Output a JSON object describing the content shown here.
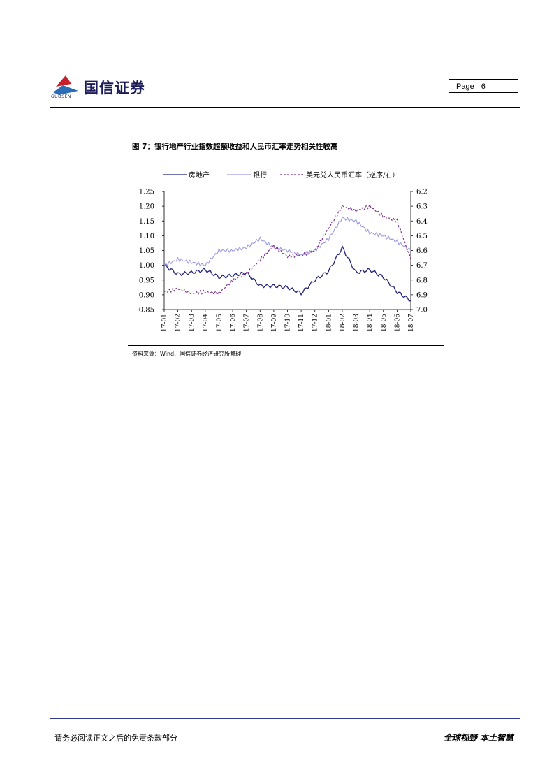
{
  "header": {
    "logo_text": "国信证券",
    "logo_subtext": "GUOSEN",
    "page_label": "Page",
    "page_number": "6"
  },
  "figure": {
    "title": "图 7：银行地产行业指数超额收益和人民币汇率走势相关性较高",
    "source": "资料来源：Wind、国信证券经济研究所整理"
  },
  "chart_data": {
    "type": "line",
    "title": "",
    "legend_position": "top",
    "grid": false,
    "x": [
      "17-01",
      "17-02",
      "17-03",
      "17-04",
      "17-05",
      "17-06",
      "17-07",
      "17-08",
      "17-09",
      "17-10",
      "17-11",
      "17-12",
      "18-01",
      "18-02",
      "18-03",
      "18-04",
      "18-05",
      "18-06",
      "18-07"
    ],
    "x_tick_labels": [
      "17-01",
      "17-02",
      "17-03",
      "17-04",
      "17-05",
      "17-06",
      "17-07",
      "17-08",
      "17-09",
      "17-10",
      "17-11",
      "17-12",
      "18-01",
      "18-02",
      "18-03",
      "18-04",
      "18-05",
      "18-06",
      "18-07"
    ],
    "y_left": {
      "ylim": [
        0.85,
        1.25
      ],
      "ticks": [
        "1.25",
        "1.20",
        "1.15",
        "1.10",
        "1.05",
        "1.00",
        "0.95",
        "0.90",
        "0.85"
      ]
    },
    "y_right": {
      "ylim": [
        6.2,
        7.0
      ],
      "reversed": true,
      "ticks": [
        "6.2",
        "6.3",
        "6.4",
        "6.5",
        "6.6",
        "6.7",
        "6.8",
        "6.9",
        "7.0"
      ]
    },
    "series": [
      {
        "name": "房地产",
        "axis": "left",
        "color": "#1f1f7a",
        "style": "solid",
        "values": [
          1.0,
          0.97,
          0.975,
          0.985,
          0.96,
          0.965,
          0.975,
          0.93,
          0.93,
          0.925,
          0.905,
          0.95,
          0.98,
          1.06,
          0.975,
          0.985,
          0.96,
          0.91,
          0.88
        ]
      },
      {
        "name": "银行",
        "axis": "left",
        "color": "#9a9ae6",
        "style": "solid",
        "values": [
          1.0,
          1.02,
          1.01,
          1.0,
          1.05,
          1.05,
          1.06,
          1.09,
          1.06,
          1.05,
          1.035,
          1.05,
          1.09,
          1.16,
          1.15,
          1.11,
          1.1,
          1.08,
          1.05
        ]
      },
      {
        "name": "美元兑人民币汇率（逆序/右）",
        "axis": "right",
        "color": "#7a2a8a",
        "style": "dashed",
        "values": [
          6.88,
          6.86,
          6.89,
          6.88,
          6.89,
          6.8,
          6.76,
          6.66,
          6.57,
          6.64,
          6.63,
          6.6,
          6.45,
          6.3,
          6.33,
          6.3,
          6.37,
          6.4,
          6.66
        ]
      }
    ]
  },
  "footer": {
    "disclaimer": "请务必阅读正文之后的免责条款部分",
    "slogan": "全球视野 本土智慧"
  },
  "colors": {
    "brand_navy": "#1b1b5a",
    "footer_rule": "#2f3a8c",
    "logo_red": "#c8202a",
    "logo_blue": "#2a6db5"
  }
}
